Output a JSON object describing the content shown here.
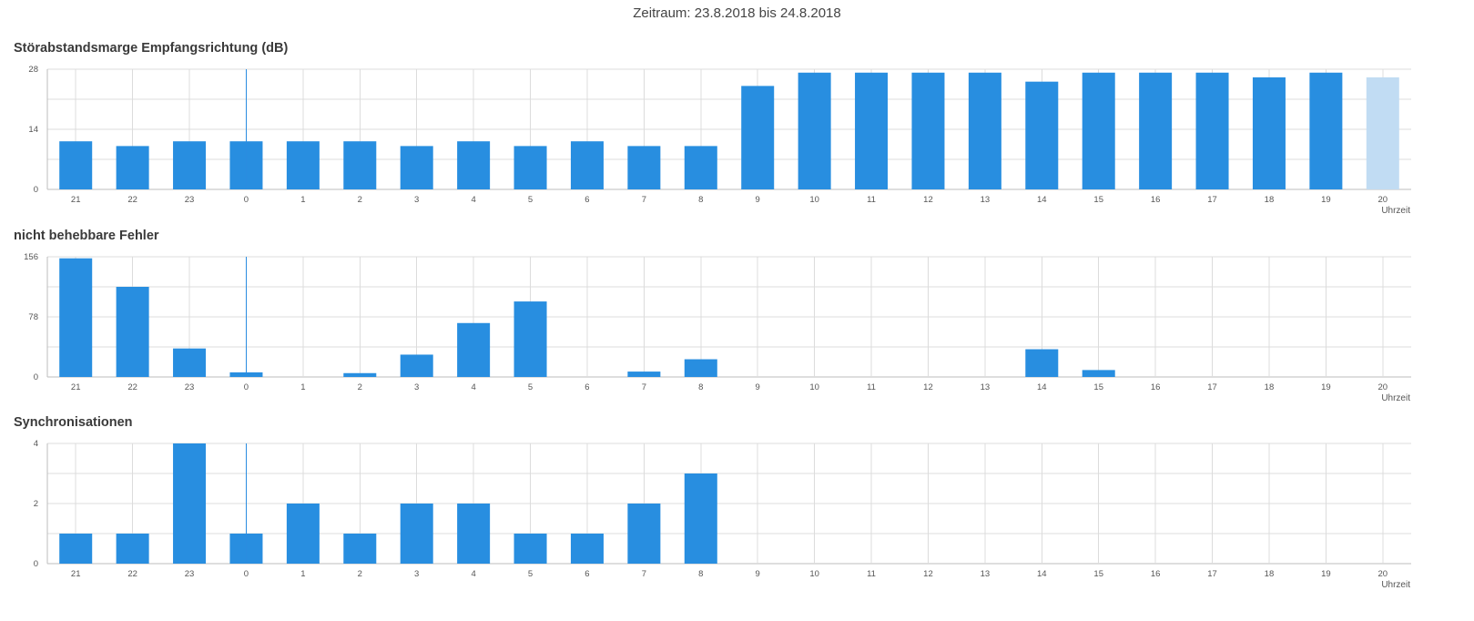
{
  "period": "Zeitraum: 23.8.2018 bis 24.8.2018",
  "colors": {
    "bar": "#288ee0",
    "bar_pending": "#c1dcf3",
    "grid": "#dcdcdc"
  },
  "x_unit": "Uhrzeit",
  "chart_data": [
    {
      "type": "bar",
      "title": "Störabstandsmarge Empfangsrichtung (dB)",
      "categories": [
        "21",
        "22",
        "23",
        "0",
        "1",
        "2",
        "3",
        "4",
        "5",
        "6",
        "7",
        "8",
        "9",
        "10",
        "11",
        "12",
        "13",
        "14",
        "15",
        "16",
        "17",
        "18",
        "19",
        "20"
      ],
      "values": [
        11.2,
        10.1,
        11.2,
        11.2,
        11.2,
        11.2,
        10.1,
        11.2,
        10.1,
        11.2,
        10.1,
        10.1,
        24.1,
        27.2,
        27.2,
        27.2,
        27.2,
        25.1,
        27.2,
        27.2,
        27.2,
        26.1,
        27.2,
        26.1
      ],
      "pending_index": 23,
      "yticks": [
        "0",
        "14",
        "28"
      ],
      "ylim": [
        0,
        28
      ],
      "marker_category": "0",
      "xlabel": "Uhrzeit",
      "grid": true
    },
    {
      "type": "bar",
      "title": "nicht behebbare Fehler",
      "categories": [
        "21",
        "22",
        "23",
        "0",
        "1",
        "2",
        "3",
        "4",
        "5",
        "6",
        "7",
        "8",
        "9",
        "10",
        "11",
        "12",
        "13",
        "14",
        "15",
        "16",
        "17",
        "18",
        "19",
        "20"
      ],
      "values": [
        154,
        117,
        37,
        6,
        0,
        5,
        29,
        70,
        98,
        0,
        7,
        23,
        0,
        0,
        0,
        0,
        0,
        36,
        9,
        0,
        0,
        0,
        0,
        0
      ],
      "yticks": [
        "0",
        "78",
        "156"
      ],
      "ylim": [
        0,
        156
      ],
      "marker_category": "0",
      "xlabel": "Uhrzeit",
      "grid": true
    },
    {
      "type": "bar",
      "title": "Synchronisationen",
      "categories": [
        "21",
        "22",
        "23",
        "0",
        "1",
        "2",
        "3",
        "4",
        "5",
        "6",
        "7",
        "8",
        "9",
        "10",
        "11",
        "12",
        "13",
        "14",
        "15",
        "16",
        "17",
        "18",
        "19",
        "20"
      ],
      "values": [
        1,
        1,
        4,
        1,
        2,
        1,
        2,
        2,
        1,
        1,
        2,
        3,
        0,
        0,
        0,
        0,
        0,
        0,
        0,
        0,
        0,
        0,
        0,
        0
      ],
      "yticks": [
        "0",
        "2",
        "4"
      ],
      "ylim": [
        0,
        4
      ],
      "marker_category": "0",
      "xlabel": "Uhrzeit",
      "grid": true
    }
  ]
}
